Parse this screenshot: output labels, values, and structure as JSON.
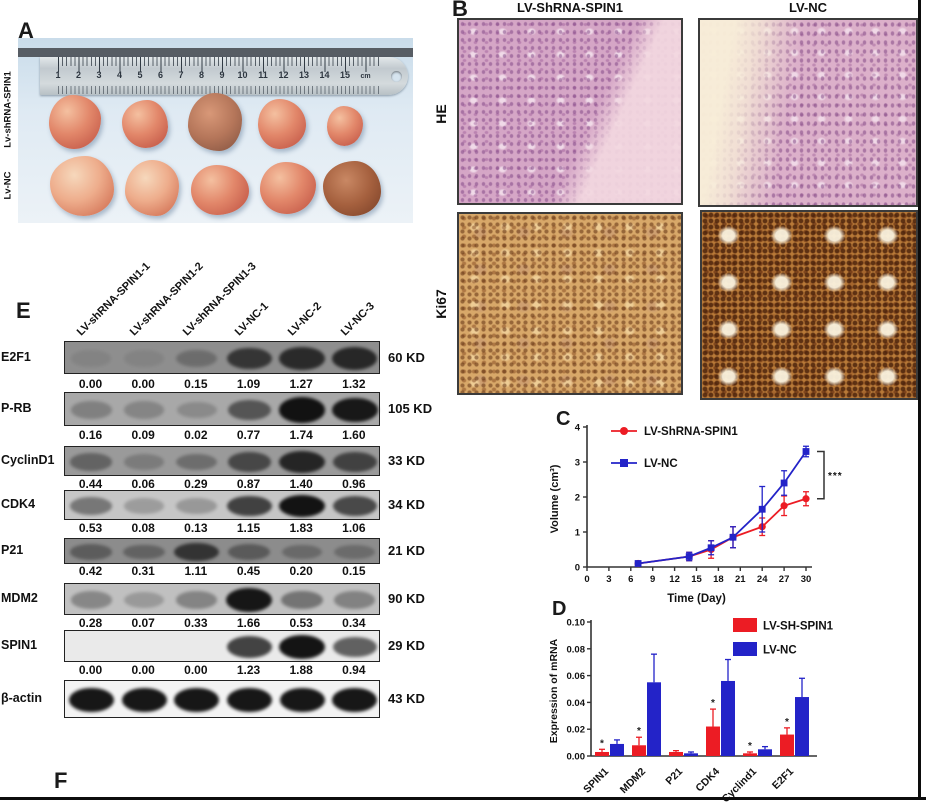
{
  "colors": {
    "red": "#ec1c24",
    "blue": "#2323c8",
    "axis": "#333333"
  },
  "panel_a": {
    "label": "A",
    "row_labels": [
      "Lv-shRNA-SPIN1",
      "Lv-NC"
    ],
    "ruler_numbers": [
      "1",
      "2",
      "3",
      "4",
      "5",
      "6",
      "7",
      "8",
      "9",
      "10",
      "11",
      "12",
      "13",
      "14",
      "15"
    ],
    "ruler_unit": "cm"
  },
  "panel_b": {
    "label": "B",
    "col_titles": [
      "LV-ShRNA-SPIN1",
      "LV-NC"
    ],
    "row_labels": [
      "HE",
      "Ki67"
    ]
  },
  "panel_c": {
    "label": "C"
  },
  "panel_d": {
    "label": "D"
  },
  "panel_e": {
    "label": "E",
    "lane_labels": [
      "LV-shRNA-SPIN1-1",
      "LV-shRNA-SPIN1-2",
      "LV-shRNA-SPIN1-3",
      "LV-NC-1",
      "LV-NC-2",
      "LV-NC-3"
    ],
    "rows": [
      {
        "protein": "E2F1",
        "kd": "60 KD",
        "values": [
          "0.00",
          "0.00",
          "0.15",
          "1.09",
          "1.27",
          "1.32"
        ]
      },
      {
        "protein": "P-RB",
        "kd": "105 KD",
        "values": [
          "0.16",
          "0.09",
          "0.02",
          "0.77",
          "1.74",
          "1.60"
        ]
      },
      {
        "protein": "CyclinD1",
        "kd": "33 KD",
        "values": [
          "0.44",
          "0.06",
          "0.29",
          "0.87",
          "1.40",
          "0.96"
        ]
      },
      {
        "protein": "CDK4",
        "kd": "34 KD",
        "values": [
          "0.53",
          "0.08",
          "0.13",
          "1.15",
          "1.83",
          "1.06"
        ]
      },
      {
        "protein": "P21",
        "kd": "21 KD",
        "values": [
          "0.42",
          "0.31",
          "1.11",
          "0.45",
          "0.20",
          "0.15"
        ]
      },
      {
        "protein": "MDM2",
        "kd": "90 KD",
        "values": [
          "0.28",
          "0.07",
          "0.33",
          "1.66",
          "0.53",
          "0.34"
        ]
      },
      {
        "protein": "SPIN1",
        "kd": "29 KD",
        "values": [
          "0.00",
          "0.00",
          "0.00",
          "1.23",
          "1.88",
          "0.94"
        ]
      },
      {
        "protein": "β-actin",
        "kd": "43 KD",
        "values": []
      }
    ]
  },
  "panel_f": {
    "label": "F"
  },
  "chart_data": [
    {
      "id": "tumor-volume-line",
      "type": "line",
      "title": "",
      "xlabel": "Time (Day)",
      "ylabel": "Volume (cm³)",
      "xlim": [
        0,
        30
      ],
      "ylim": [
        0,
        4
      ],
      "xticks": [
        0,
        3,
        6,
        9,
        12,
        15,
        18,
        21,
        24,
        27,
        30
      ],
      "yticks": [
        0,
        1,
        2,
        3,
        4
      ],
      "x": [
        7,
        14,
        17,
        20,
        24,
        27,
        30
      ],
      "series": [
        {
          "name": "LV-ShRNA-SPIN1",
          "color": "#ec1c24",
          "marker": "circle",
          "values": [
            0.1,
            0.3,
            0.5,
            0.85,
            1.15,
            1.75,
            1.95
          ],
          "errors": [
            0.05,
            0.12,
            0.25,
            0.3,
            0.25,
            0.28,
            0.2
          ]
        },
        {
          "name": "LV-NC",
          "color": "#2323c8",
          "marker": "square",
          "values": [
            0.1,
            0.3,
            0.55,
            0.85,
            1.65,
            2.4,
            3.3
          ],
          "errors": [
            0.05,
            0.12,
            0.2,
            0.3,
            0.65,
            0.35,
            0.15
          ]
        }
      ],
      "significance": "***",
      "legend_position": "top-left",
      "grid": false
    },
    {
      "id": "mrna-expression-bar",
      "type": "bar",
      "title": "",
      "xlabel": "",
      "ylabel": "Expression of mRNA",
      "ylim": [
        0,
        0.1
      ],
      "yticks": [
        0.0,
        0.02,
        0.04,
        0.06,
        0.08,
        0.1
      ],
      "categories": [
        "SPIN1",
        "MDM2",
        "P21",
        "CDK4",
        "Cyclind1",
        "E2F1"
      ],
      "series": [
        {
          "name": "LV-SH-SPIN1",
          "color": "#ec1c24",
          "values": [
            0.003,
            0.008,
            0.003,
            0.022,
            0.002,
            0.016
          ],
          "errors": [
            0.002,
            0.006,
            0.001,
            0.013,
            0.001,
            0.005
          ],
          "sig": [
            "*",
            "*",
            "",
            "*",
            "*",
            "*"
          ]
        },
        {
          "name": "LV-NC",
          "color": "#2323c8",
          "values": [
            0.009,
            0.055,
            0.002,
            0.056,
            0.005,
            0.044
          ],
          "errors": [
            0.003,
            0.021,
            0.001,
            0.016,
            0.002,
            0.014
          ],
          "sig": [
            "",
            "",
            "",
            "",
            "",
            ""
          ]
        }
      ],
      "legend_position": "top-right",
      "grid": false
    }
  ]
}
